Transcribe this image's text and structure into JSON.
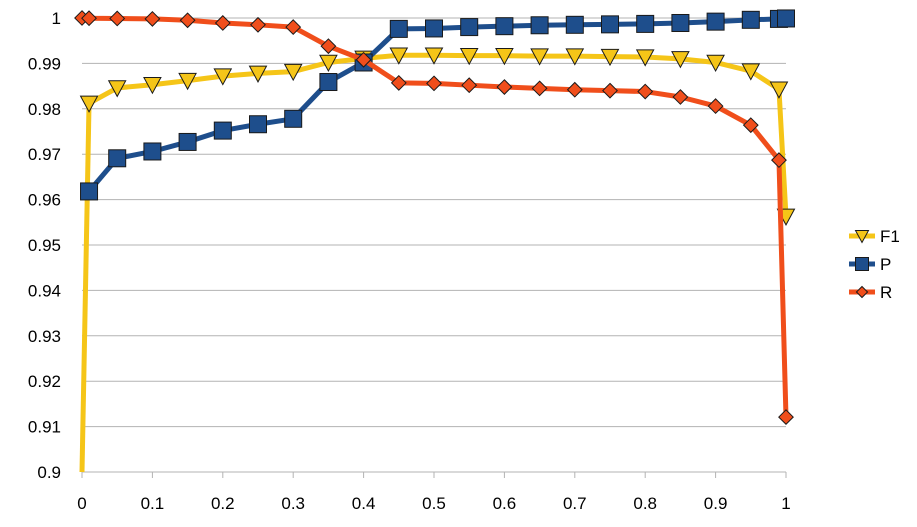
{
  "chart_data": {
    "type": "line",
    "title": "",
    "xlabel": "",
    "ylabel": "",
    "xlim": [
      0,
      1
    ],
    "ylim": [
      0.9,
      1
    ],
    "x_ticks": [
      "0",
      "0.1",
      "0.2",
      "0.3",
      "0.4",
      "0.5",
      "0.6",
      "0.7",
      "0.8",
      "0.9",
      "1"
    ],
    "y_ticks": [
      "0.9",
      "0.91",
      "0.92",
      "0.93",
      "0.94",
      "0.95",
      "0.96",
      "0.97",
      "0.98",
      "0.99",
      "1"
    ],
    "grid": "horizontal",
    "legend_position": "right",
    "series": [
      {
        "name": "F1",
        "color": "#F5C518",
        "marker": "triangle-down",
        "x": [
          0.01,
          0.05,
          0.1,
          0.15,
          0.2,
          0.25,
          0.3,
          0.35,
          0.4,
          0.45,
          0.5,
          0.55,
          0.6,
          0.65,
          0.7,
          0.75,
          0.8,
          0.85,
          0.9,
          0.95,
          0.99,
          1.0
        ],
        "values": [
          0.9812,
          0.9846,
          0.9853,
          0.9862,
          0.9872,
          0.9878,
          0.9882,
          0.9902,
          0.9911,
          0.9918,
          0.9918,
          0.9917,
          0.9917,
          0.9916,
          0.9916,
          0.9915,
          0.9914,
          0.991,
          0.9902,
          0.9883,
          0.9843,
          0.9563
        ],
        "extra_lines": [
          {
            "x": [
              0.0,
              0.01
            ],
            "values": [
              0.9,
              0.9812
            ]
          }
        ]
      },
      {
        "name": "P",
        "color": "#1E4E8C",
        "marker": "square",
        "x": [
          0.01,
          0.05,
          0.1,
          0.15,
          0.2,
          0.25,
          0.3,
          0.35,
          0.4,
          0.45,
          0.5,
          0.55,
          0.6,
          0.65,
          0.7,
          0.75,
          0.8,
          0.85,
          0.9,
          0.95,
          0.99,
          1.0
        ],
        "values": [
          0.9618,
          0.9691,
          0.9706,
          0.9727,
          0.9752,
          0.9766,
          0.9778,
          0.9859,
          0.9902,
          0.9976,
          0.9977,
          0.998,
          0.9982,
          0.9984,
          0.9985,
          0.9986,
          0.9987,
          0.9989,
          0.9992,
          0.9996,
          0.9998,
          0.9999
        ]
      },
      {
        "name": "R",
        "color": "#F04E1B",
        "marker": "diamond",
        "x": [
          0.0,
          0.01,
          0.05,
          0.1,
          0.15,
          0.2,
          0.25,
          0.3,
          0.35,
          0.4,
          0.45,
          0.5,
          0.55,
          0.6,
          0.65,
          0.7,
          0.75,
          0.8,
          0.85,
          0.9,
          0.95,
          0.99,
          1.0
        ],
        "values": [
          1.0,
          0.99995,
          0.9999,
          0.9998,
          0.9995,
          0.9989,
          0.9985,
          0.998,
          0.9938,
          0.9908,
          0.9857,
          0.9856,
          0.9852,
          0.9848,
          0.9845,
          0.9842,
          0.984,
          0.9838,
          0.9826,
          0.9806,
          0.9764,
          0.9687,
          0.9121
        ]
      }
    ]
  }
}
